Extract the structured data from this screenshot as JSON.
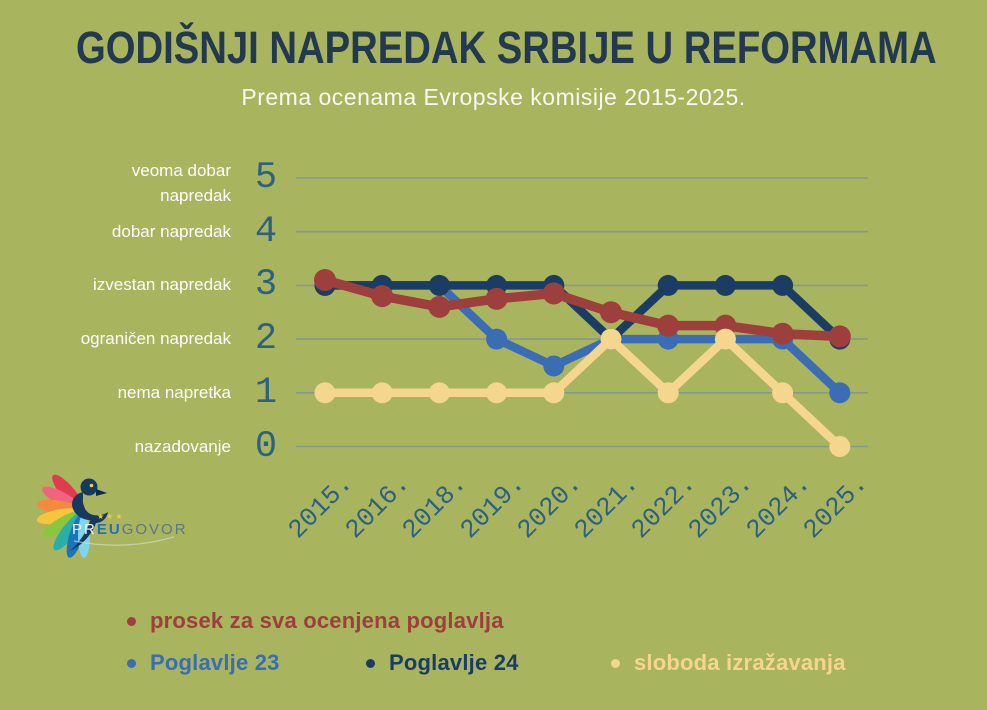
{
  "title": "GODIŠNJI NAPREDAK SRBIJE U REFORMAMA",
  "subtitle": "Prema ocenama Evropske komisije 2015-2025.",
  "logo": {
    "pr": "PR",
    "eu": "EU",
    "govor": "GOVOR",
    "stars": "★★★"
  },
  "colors": {
    "background": "#a9b45f",
    "title": "#223950",
    "subtitle": "#f9f9f1",
    "axis_label": "#ffffff",
    "tick_text": "#2d6181",
    "grid": "#7e949b"
  },
  "chart_data": {
    "type": "line",
    "title": "GODIŠNJI NAPREDAK SRBIJE U REFORMAMA",
    "subtitle": "Prema ocenama Evropske komisije 2015-2025.",
    "categories": [
      "2015.",
      "2016.",
      "2018.",
      "2019.",
      "2020.",
      "2021.",
      "2022.",
      "2023.",
      "2024.",
      "2025."
    ],
    "ylim": [
      0,
      5
    ],
    "grid": true,
    "legend_position": "bottom",
    "y_ticks": [
      {
        "value": 5,
        "label": "veoma dobar\nnapredak"
      },
      {
        "value": 4,
        "label": "dobar napredak"
      },
      {
        "value": 3,
        "label": "izvestan napredak"
      },
      {
        "value": 2,
        "label": "ograničen napredak"
      },
      {
        "value": 1,
        "label": "nema napretka"
      },
      {
        "value": 0,
        "label": "nazadovanje"
      }
    ],
    "series": [
      {
        "name": "prosek za sva ocenjena poglavlja",
        "color": "#9d3f3c",
        "values": [
          3.1,
          2.8,
          2.6,
          2.75,
          2.85,
          2.5,
          2.25,
          2.25,
          2.1,
          2.05
        ]
      },
      {
        "name": "Poglavlje 23",
        "color": "#3a6db3",
        "values": [
          3,
          3,
          3,
          2,
          1.5,
          2,
          2,
          2,
          2,
          1
        ]
      },
      {
        "name": "Poglavlje 24",
        "color": "#1c3d63",
        "values": [
          3,
          3,
          3,
          3,
          3,
          2,
          3,
          3,
          3,
          2
        ]
      },
      {
        "name": "sloboda izražavanja",
        "color": "#f4d68f",
        "values": [
          1,
          1,
          1,
          1,
          1,
          2,
          1,
          2,
          1,
          0
        ]
      }
    ]
  }
}
